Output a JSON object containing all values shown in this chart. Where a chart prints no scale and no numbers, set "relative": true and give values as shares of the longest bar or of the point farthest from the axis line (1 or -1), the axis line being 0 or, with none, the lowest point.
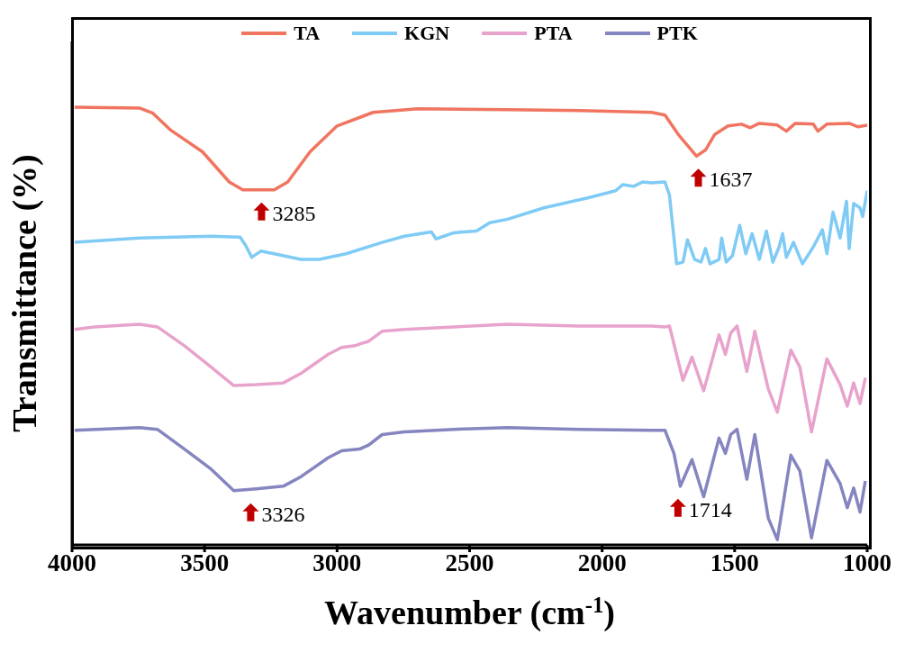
{
  "chart_data": {
    "type": "line",
    "relative": true,
    "xlabel": "Wavenumber (cm$^{-1}$)",
    "ylabel": "Transmittance (%)",
    "xlim": [
      4000,
      1000
    ],
    "xticks": [
      4000,
      3500,
      3000,
      2500,
      2000,
      1500,
      1000
    ],
    "legend": "top",
    "grid": false,
    "marker": "none",
    "line_style": "solid",
    "series": [
      {
        "name": "TA",
        "color": "#f07560",
        "x": [
          3990,
          3746,
          3695,
          3627,
          3508,
          3407,
          3356,
          3237,
          3186,
          3102,
          3000,
          2864,
          2695,
          2356,
          2085,
          1813,
          1763,
          1712,
          1644,
          1610,
          1576,
          1525,
          1474,
          1441,
          1407,
          1339,
          1305,
          1271,
          1203,
          1186,
          1152,
          1068,
          1034,
          1000
        ],
        "values": [
          1,
          0.998,
          0.986,
          0.947,
          0.898,
          0.829,
          0.811,
          0.811,
          0.829,
          0.898,
          0.957,
          0.988,
          0.996,
          0.994,
          0.992,
          0.988,
          0.982,
          0.937,
          0.888,
          0.902,
          0.937,
          0.957,
          0.961,
          0.953,
          0.963,
          0.959,
          0.945,
          0.963,
          0.961,
          0.945,
          0.961,
          0.963,
          0.955,
          0.959
        ]
      },
      {
        "name": "KGN",
        "color": "#7fcbf5",
        "x": [
          3990,
          3746,
          3475,
          3366,
          3346,
          3322,
          3288,
          3237,
          3136,
          3068,
          2966,
          2830,
          2746,
          2644,
          2627,
          2559,
          2474,
          2424,
          2356,
          2220,
          2051,
          1949,
          1922,
          1881,
          1847,
          1813,
          1763,
          1746,
          1729,
          1719,
          1695,
          1678,
          1651,
          1627,
          1610,
          1593,
          1559,
          1549,
          1532,
          1508,
          1481,
          1458,
          1434,
          1407,
          1380,
          1356,
          1332,
          1319,
          1305,
          1278,
          1244,
          1203,
          1169,
          1152,
          1129,
          1102,
          1078,
          1068,
          1051,
          1027,
          1017,
          1000
        ],
        "values": [
          0.691,
          0.701,
          0.705,
          0.703,
          0.685,
          0.657,
          0.671,
          0.665,
          0.652,
          0.652,
          0.665,
          0.691,
          0.705,
          0.715,
          0.699,
          0.713,
          0.717,
          0.736,
          0.744,
          0.77,
          0.793,
          0.809,
          0.823,
          0.819,
          0.829,
          0.827,
          0.829,
          0.799,
          0.701,
          0.642,
          0.646,
          0.697,
          0.652,
          0.646,
          0.677,
          0.642,
          0.652,
          0.701,
          0.646,
          0.661,
          0.73,
          0.665,
          0.711,
          0.652,
          0.717,
          0.646,
          0.681,
          0.711,
          0.657,
          0.691,
          0.642,
          0.681,
          0.72,
          0.665,
          0.76,
          0.701,
          0.785,
          0.677,
          0.78,
          0.77,
          0.75,
          0.809
        ]
      },
      {
        "name": "PTA",
        "color": "#e8a3cc",
        "x": [
          3990,
          3915,
          3746,
          3678,
          3576,
          3475,
          3390,
          3305,
          3203,
          3136,
          3034,
          2983,
          2932,
          2915,
          2881,
          2830,
          2746,
          2559,
          2356,
          2085,
          1813,
          1763,
          1746,
          1695,
          1661,
          1617,
          1559,
          1535,
          1515,
          1491,
          1454,
          1424,
          1373,
          1339,
          1288,
          1254,
          1210,
          1152,
          1102,
          1075,
          1051,
          1027,
          1007
        ],
        "values": [
          0.492,
          0.498,
          0.504,
          0.498,
          0.455,
          0.406,
          0.364,
          0.366,
          0.37,
          0.392,
          0.435,
          0.451,
          0.455,
          0.459,
          0.465,
          0.488,
          0.492,
          0.498,
          0.504,
          0.5,
          0.5,
          0.498,
          0.5,
          0.376,
          0.429,
          0.352,
          0.48,
          0.435,
          0.484,
          0.5,
          0.396,
          0.488,
          0.356,
          0.303,
          0.445,
          0.406,
          0.258,
          0.425,
          0.366,
          0.317,
          0.37,
          0.323,
          0.382
        ]
      },
      {
        "name": "PTK",
        "color": "#8585c0",
        "x": [
          3990,
          3746,
          3678,
          3576,
          3475,
          3390,
          3305,
          3203,
          3136,
          3034,
          2983,
          2915,
          2881,
          2830,
          2746,
          2559,
          2356,
          2085,
          1813,
          1763,
          1729,
          1705,
          1661,
          1617,
          1559,
          1535,
          1515,
          1491,
          1454,
          1424,
          1373,
          1339,
          1288,
          1254,
          1210,
          1152,
          1102,
          1075,
          1051,
          1027,
          1007
        ],
        "values": [
          0.262,
          0.268,
          0.264,
          0.219,
          0.173,
          0.124,
          0.128,
          0.134,
          0.156,
          0.199,
          0.215,
          0.219,
          0.228,
          0.252,
          0.258,
          0.264,
          0.268,
          0.264,
          0.262,
          0.262,
          0.209,
          0.134,
          0.195,
          0.11,
          0.244,
          0.209,
          0.252,
          0.264,
          0.15,
          0.252,
          0.061,
          0.012,
          0.205,
          0.169,
          0.016,
          0.193,
          0.14,
          0.085,
          0.13,
          0.075,
          0.146
        ]
      }
    ],
    "annotations": [
      {
        "text": "3285",
        "x": 3285,
        "y": 0.811
      },
      {
        "text": "1637",
        "x": 1637,
        "y": 0.888
      },
      {
        "text": "3326",
        "x": 3326,
        "y": 0.124
      },
      {
        "text": "1714",
        "x": 1714,
        "y": 0.134
      }
    ]
  }
}
